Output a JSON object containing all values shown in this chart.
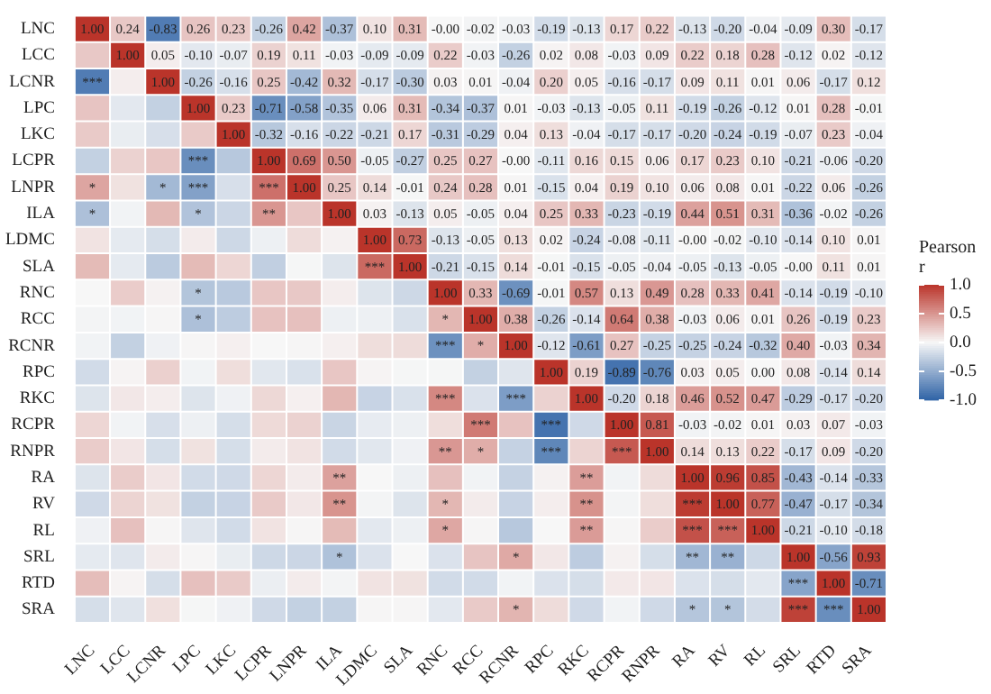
{
  "chart_data": {
    "type": "heatmap",
    "clabel": "Pearson r",
    "clim": [
      -1,
      1
    ],
    "cticks": [
      {
        "value": 1,
        "label": "1.0"
      },
      {
        "value": 0.5,
        "label": "0.5"
      },
      {
        "value": 0,
        "label": "0.0"
      },
      {
        "value": -0.5,
        "label": "-0.5"
      },
      {
        "value": -1,
        "label": "-1.0"
      }
    ],
    "categories": [
      "LNC",
      "LCC",
      "LCNR",
      "LPC",
      "LKC",
      "LCPR",
      "LNPR",
      "ILA",
      "LDMC",
      "SLA",
      "RNC",
      "RCC",
      "RCNR",
      "RPC",
      "RKC",
      "RCPR",
      "RNPR",
      "RA",
      "RV",
      "RL",
      "SRL",
      "RTD",
      "SRA"
    ],
    "y_categories": [
      "LNC",
      "LCC",
      "LCNR",
      "LPC",
      "LKC",
      "LCPR",
      "LNPR",
      "ILA",
      "LDMC",
      "SLA",
      "RNC",
      "RCC",
      "RCNR",
      "RPC",
      "RKC",
      "RCPR",
      "RNPR",
      "RA",
      "RV",
      "RL",
      "SRL",
      "RTD",
      "SRA"
    ],
    "cells": [
      [
        1,
        0.24,
        -0.83,
        0.26,
        0.23,
        -0.26,
        0.42,
        -0.37,
        0.1,
        0.31,
        0,
        -0.02,
        -0.03,
        -0.19,
        -0.13,
        0.17,
        0.22,
        -0.13,
        -0.2,
        -0.04,
        -0.09,
        0.3,
        -0.17
      ],
      [
        0.24,
        1,
        0.05,
        -0.1,
        -0.07,
        0.19,
        0.11,
        -0.03,
        -0.09,
        -0.09,
        0.22,
        -0.03,
        -0.26,
        0.02,
        0.08,
        -0.03,
        0.09,
        0.22,
        0.18,
        0.28,
        -0.12,
        0.02,
        -0.12
      ],
      [
        -0.83,
        0.05,
        1,
        -0.26,
        -0.16,
        0.25,
        -0.42,
        0.32,
        -0.17,
        -0.3,
        0.03,
        0.01,
        -0.04,
        0.2,
        0.05,
        -0.16,
        -0.17,
        0.09,
        0.11,
        0.01,
        0.06,
        -0.17,
        0.12
      ],
      [
        0.26,
        -0.1,
        -0.26,
        1,
        0.23,
        -0.71,
        -0.58,
        -0.35,
        0.06,
        0.31,
        -0.34,
        -0.37,
        0.01,
        -0.03,
        -0.13,
        -0.05,
        0.11,
        -0.19,
        -0.26,
        -0.12,
        0.01,
        0.28,
        -0.01
      ],
      [
        0.23,
        -0.07,
        -0.16,
        0.23,
        1,
        -0.32,
        -0.16,
        -0.22,
        -0.21,
        0.17,
        -0.31,
        -0.29,
        0.04,
        0.13,
        -0.04,
        -0.17,
        -0.17,
        -0.2,
        -0.24,
        -0.19,
        -0.07,
        0.23,
        -0.04
      ],
      [
        -0.26,
        0.19,
        0.25,
        -0.71,
        -0.32,
        1,
        0.69,
        0.5,
        -0.05,
        -0.27,
        0.25,
        0.27,
        0,
        -0.11,
        0.16,
        0.15,
        0.06,
        0.17,
        0.23,
        0.1,
        -0.21,
        -0.06,
        -0.2
      ],
      [
        0.42,
        0.11,
        -0.42,
        -0.58,
        -0.16,
        0.69,
        1,
        0.25,
        0.14,
        -0.01,
        0.24,
        0.28,
        0.01,
        -0.15,
        0.04,
        0.19,
        0.1,
        0.06,
        0.08,
        0.01,
        -0.22,
        0.06,
        -0.26
      ],
      [
        -0.37,
        -0.03,
        0.32,
        -0.35,
        -0.22,
        0.5,
        0.25,
        1,
        0.03,
        -0.13,
        0.05,
        -0.05,
        0.04,
        0.25,
        0.33,
        -0.23,
        -0.19,
        0.44,
        0.51,
        0.31,
        -0.36,
        -0.02,
        -0.26
      ],
      [
        0.1,
        -0.09,
        -0.17,
        0.06,
        -0.21,
        -0.05,
        0.14,
        0.03,
        1,
        0.73,
        -0.13,
        -0.05,
        0.13,
        0.02,
        -0.24,
        -0.08,
        -0.11,
        0,
        -0.02,
        -0.1,
        -0.14,
        0.1,
        0.01
      ],
      [
        0.31,
        -0.09,
        -0.3,
        0.31,
        0.17,
        -0.27,
        -0.01,
        -0.13,
        0.73,
        1,
        -0.21,
        -0.15,
        0.14,
        -0.01,
        -0.15,
        -0.05,
        -0.04,
        -0.05,
        -0.13,
        -0.05,
        0,
        0.11,
        0.01
      ],
      [
        0,
        0.22,
        0.03,
        -0.34,
        -0.31,
        0.25,
        0.24,
        0.05,
        -0.13,
        -0.21,
        1,
        0.33,
        -0.69,
        -0.01,
        0.57,
        0.13,
        0.49,
        0.28,
        0.33,
        0.41,
        -0.14,
        -0.19,
        -0.1
      ],
      [
        -0.02,
        -0.03,
        0.01,
        -0.37,
        -0.29,
        0.27,
        0.28,
        -0.05,
        -0.05,
        -0.15,
        0.33,
        1,
        0.38,
        -0.26,
        -0.14,
        0.64,
        0.38,
        -0.03,
        0.06,
        0.01,
        0.26,
        -0.19,
        0.23
      ],
      [
        -0.03,
        -0.26,
        -0.04,
        0.01,
        0.04,
        0,
        0.01,
        0.04,
        0.13,
        0.14,
        -0.69,
        0.38,
        1,
        -0.12,
        -0.61,
        0.27,
        -0.25,
        -0.25,
        -0.24,
        -0.32,
        0.4,
        -0.03,
        0.34
      ],
      [
        -0.19,
        0.02,
        0.2,
        -0.03,
        0.13,
        -0.11,
        -0.15,
        0.25,
        0.02,
        -0.01,
        -0.01,
        -0.26,
        -0.12,
        1,
        0.19,
        -0.89,
        -0.76,
        0.03,
        0.05,
        0.0,
        0.08,
        -0.14,
        0.14
      ],
      [
        -0.13,
        0.08,
        0.05,
        -0.13,
        -0.04,
        0.16,
        0.04,
        0.33,
        -0.24,
        -0.15,
        0.57,
        -0.14,
        -0.61,
        0.19,
        1,
        -0.2,
        0.18,
        0.46,
        0.52,
        0.47,
        -0.29,
        -0.17,
        -0.2
      ],
      [
        0.17,
        -0.03,
        -0.16,
        -0.05,
        -0.17,
        0.15,
        0.19,
        -0.23,
        -0.08,
        -0.05,
        0.13,
        0.64,
        0.27,
        -0.89,
        -0.2,
        1,
        0.81,
        -0.03,
        -0.02,
        0.01,
        0.03,
        0.07,
        -0.03
      ],
      [
        0.22,
        0.09,
        -0.17,
        0.11,
        -0.17,
        0.06,
        0.1,
        -0.19,
        -0.11,
        -0.04,
        0.49,
        0.38,
        -0.25,
        -0.76,
        0.18,
        0.81,
        1,
        0.14,
        0.13,
        0.22,
        -0.17,
        0.09,
        -0.2
      ],
      [
        -0.13,
        0.22,
        0.09,
        -0.19,
        -0.2,
        0.17,
        0.06,
        0.44,
        0,
        -0.05,
        0.28,
        -0.03,
        -0.25,
        0.03,
        0.46,
        -0.03,
        0.14,
        1,
        0.96,
        0.85,
        -0.43,
        -0.14,
        -0.33
      ],
      [
        -0.2,
        0.18,
        0.11,
        -0.26,
        -0.24,
        0.23,
        0.08,
        0.51,
        -0.02,
        -0.13,
        0.33,
        0.06,
        -0.24,
        0.05,
        0.52,
        -0.02,
        0.13,
        0.96,
        1,
        0.77,
        -0.47,
        -0.17,
        -0.34
      ],
      [
        -0.04,
        0.28,
        0.01,
        -0.12,
        -0.19,
        0.1,
        0.01,
        0.31,
        -0.1,
        -0.05,
        0.41,
        0.01,
        -0.32,
        0.0,
        0.47,
        0.01,
        0.22,
        0.85,
        0.77,
        1,
        -0.21,
        -0.1,
        -0.18
      ],
      [
        -0.09,
        -0.12,
        0.06,
        0.01,
        -0.07,
        -0.21,
        -0.22,
        -0.36,
        -0.14,
        0,
        -0.14,
        0.26,
        0.4,
        0.08,
        -0.29,
        0.03,
        -0.17,
        -0.43,
        -0.47,
        -0.21,
        1,
        -0.56,
        0.93
      ],
      [
        0.3,
        0.02,
        -0.17,
        0.28,
        0.23,
        -0.06,
        0.06,
        -0.02,
        0.1,
        0.11,
        -0.19,
        -0.19,
        -0.03,
        -0.14,
        -0.17,
        0.07,
        0.09,
        -0.14,
        -0.17,
        -0.1,
        -0.56,
        1,
        -0.71
      ],
      [
        -0.17,
        -0.12,
        0.12,
        -0.01,
        -0.04,
        -0.2,
        -0.26,
        -0.26,
        0.01,
        0.01,
        -0.1,
        0.23,
        0.34,
        0.14,
        -0.2,
        -0.03,
        -0.2,
        -0.33,
        -0.34,
        -0.18,
        0.93,
        -0.71,
        1
      ]
    ],
    "cell_labels": [
      [
        "1.00",
        "0.24",
        "-0.83",
        "0.26",
        "0.23",
        "-0.26",
        "0.42",
        "-0.37",
        "0.10",
        "0.31",
        "-0.00",
        "-0.02",
        "-0.03",
        "-0.19",
        "-0.13",
        "0.17",
        "0.22",
        "-0.13",
        "-0.20",
        "-0.04",
        "-0.09",
        "0.30",
        "-0.17"
      ],
      [
        null,
        "1.00",
        "0.05",
        "-0.10",
        "-0.07",
        "0.19",
        "0.11",
        "-0.03",
        "-0.09",
        "-0.09",
        "0.22",
        "-0.03",
        "-0.26",
        "0.02",
        "0.08",
        "-0.03",
        "0.09",
        "0.22",
        "0.18",
        "0.28",
        "-0.12",
        "0.02",
        "-0.12"
      ],
      [
        "***",
        null,
        "1.00",
        "-0.26",
        "-0.16",
        "0.25",
        "-0.42",
        "0.32",
        "-0.17",
        "-0.30",
        "0.03",
        "0.01",
        "-0.04",
        "0.20",
        "0.05",
        "-0.16",
        "-0.17",
        "0.09",
        "0.11",
        "0.01",
        "0.06",
        "-0.17",
        "0.12"
      ],
      [
        null,
        null,
        null,
        "1.00",
        "0.23",
        "-0.71",
        "-0.58",
        "-0.35",
        "0.06",
        "0.31",
        "-0.34",
        "-0.37",
        "0.01",
        "-0.03",
        "-0.13",
        "-0.05",
        "0.11",
        "-0.19",
        "-0.26",
        "-0.12",
        "0.01",
        "0.28",
        "-0.01"
      ],
      [
        null,
        null,
        null,
        null,
        "1.00",
        "-0.32",
        "-0.16",
        "-0.22",
        "-0.21",
        "0.17",
        "-0.31",
        "-0.29",
        "0.04",
        "0.13",
        "-0.04",
        "-0.17",
        "-0.17",
        "-0.20",
        "-0.24",
        "-0.19",
        "-0.07",
        "0.23",
        "-0.04"
      ],
      [
        null,
        null,
        null,
        "***",
        null,
        "1.00",
        "0.69",
        "0.50",
        "-0.05",
        "-0.27",
        "0.25",
        "0.27",
        "-0.00",
        "-0.11",
        "0.16",
        "0.15",
        "0.06",
        "0.17",
        "0.23",
        "0.10",
        "-0.21",
        "-0.06",
        "-0.20"
      ],
      [
        "*",
        null,
        "*",
        "***",
        null,
        "***",
        "1.00",
        "0.25",
        "0.14",
        "-0.01",
        "0.24",
        "0.28",
        "0.01",
        "-0.15",
        "0.04",
        "0.19",
        "0.10",
        "0.06",
        "0.08",
        "0.01",
        "-0.22",
        "0.06",
        "-0.26"
      ],
      [
        "*",
        null,
        null,
        "*",
        null,
        "**",
        null,
        "1.00",
        "0.03",
        "-0.13",
        "0.05",
        "-0.05",
        "0.04",
        "0.25",
        "0.33",
        "-0.23",
        "-0.19",
        "0.44",
        "0.51",
        "0.31",
        "-0.36",
        "-0.02",
        "-0.26"
      ],
      [
        null,
        null,
        null,
        null,
        null,
        null,
        null,
        null,
        "1.00",
        "0.73",
        "-0.13",
        "-0.05",
        "0.13",
        "0.02",
        "-0.24",
        "-0.08",
        "-0.11",
        "-0.00",
        "-0.02",
        "-0.10",
        "-0.14",
        "0.10",
        "0.01"
      ],
      [
        null,
        null,
        null,
        null,
        null,
        null,
        null,
        null,
        "***",
        "1.00",
        "-0.21",
        "-0.15",
        "0.14",
        "-0.01",
        "-0.15",
        "-0.05",
        "-0.04",
        "-0.05",
        "-0.13",
        "-0.05",
        "-0.00",
        "0.11",
        "0.01"
      ],
      [
        null,
        null,
        null,
        "*",
        null,
        null,
        null,
        null,
        null,
        null,
        "1.00",
        "0.33",
        "-0.69",
        "-0.01",
        "0.57",
        "0.13",
        "0.49",
        "0.28",
        "0.33",
        "0.41",
        "-0.14",
        "-0.19",
        "-0.10"
      ],
      [
        null,
        null,
        null,
        "*",
        null,
        null,
        null,
        null,
        null,
        null,
        "*",
        "1.00",
        "0.38",
        "-0.26",
        "-0.14",
        "0.64",
        "0.38",
        "-0.03",
        "0.06",
        "0.01",
        "0.26",
        "-0.19",
        "0.23"
      ],
      [
        null,
        null,
        null,
        null,
        null,
        null,
        null,
        null,
        null,
        null,
        "***",
        "*",
        "1.00",
        "-0.12",
        "-0.61",
        "0.27",
        "-0.25",
        "-0.25",
        "-0.24",
        "-0.32",
        "0.40",
        "-0.03",
        "0.34"
      ],
      [
        null,
        null,
        null,
        null,
        null,
        null,
        null,
        null,
        null,
        null,
        null,
        null,
        null,
        "1.00",
        "0.19",
        "-0.89",
        "-0.76",
        "0.03",
        "0.05",
        "0.00",
        "0.08",
        "-0.14",
        "0.14"
      ],
      [
        null,
        null,
        null,
        null,
        null,
        null,
        null,
        null,
        null,
        null,
        "***",
        null,
        "***",
        null,
        "1.00",
        "-0.20",
        "0.18",
        "0.46",
        "0.52",
        "0.47",
        "-0.29",
        "-0.17",
        "-0.20"
      ],
      [
        null,
        null,
        null,
        null,
        null,
        null,
        null,
        null,
        null,
        null,
        null,
        "***",
        null,
        "***",
        null,
        "1.00",
        "0.81",
        "-0.03",
        "-0.02",
        "0.01",
        "0.03",
        "0.07",
        "-0.03"
      ],
      [
        null,
        null,
        null,
        null,
        null,
        null,
        null,
        null,
        null,
        null,
        "**",
        "*",
        null,
        "***",
        null,
        "***",
        "1.00",
        "0.14",
        "0.13",
        "0.22",
        "-0.17",
        "0.09",
        "-0.20"
      ],
      [
        null,
        null,
        null,
        null,
        null,
        null,
        null,
        "**",
        null,
        null,
        null,
        null,
        null,
        null,
        "**",
        null,
        null,
        "1.00",
        "0.96",
        "0.85",
        "-0.43",
        "-0.14",
        "-0.33"
      ],
      [
        null,
        null,
        null,
        null,
        null,
        null,
        null,
        "**",
        null,
        null,
        "*",
        null,
        null,
        null,
        "**",
        null,
        null,
        "***",
        "1.00",
        "0.77",
        "-0.47",
        "-0.17",
        "-0.34"
      ],
      [
        null,
        null,
        null,
        null,
        null,
        null,
        null,
        null,
        null,
        null,
        "*",
        null,
        null,
        null,
        "**",
        null,
        null,
        "***",
        "***",
        "1.00",
        "-0.21",
        "-0.10",
        "-0.18"
      ],
      [
        null,
        null,
        null,
        null,
        null,
        null,
        null,
        "*",
        null,
        null,
        null,
        null,
        "*",
        null,
        null,
        null,
        null,
        "**",
        "**",
        null,
        "1.00",
        "-0.56",
        "0.93"
      ],
      [
        null,
        null,
        null,
        null,
        null,
        null,
        null,
        null,
        null,
        null,
        null,
        null,
        null,
        null,
        null,
        null,
        null,
        null,
        null,
        null,
        "***",
        "1.00",
        "-0.71"
      ],
      [
        null,
        null,
        null,
        null,
        null,
        null,
        null,
        null,
        null,
        null,
        null,
        null,
        "*",
        null,
        null,
        null,
        null,
        "*",
        "*",
        null,
        "***",
        "***",
        "1.00"
      ]
    ]
  }
}
